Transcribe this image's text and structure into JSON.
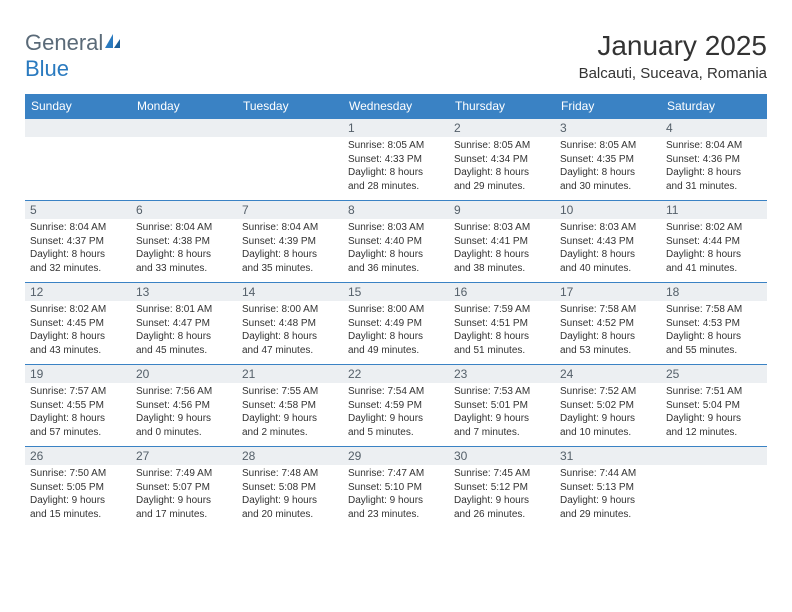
{
  "logo": {
    "general": "General",
    "blue": "Blue"
  },
  "title": "January 2025",
  "location": "Balcauti, Suceava, Romania",
  "colors": {
    "header_bg": "#3a82c4",
    "header_text": "#ffffff",
    "daynum_bg": "#eceff2",
    "daynum_text": "#55606a",
    "border": "#3a82c4",
    "logo_gray": "#5a6a78",
    "logo_blue": "#2a7abf"
  },
  "daysOfWeek": [
    "Sunday",
    "Monday",
    "Tuesday",
    "Wednesday",
    "Thursday",
    "Friday",
    "Saturday"
  ],
  "weeks": [
    [
      null,
      null,
      null,
      {
        "n": "1",
        "sr": "8:05 AM",
        "ss": "4:33 PM",
        "dh": "8",
        "dm": "28"
      },
      {
        "n": "2",
        "sr": "8:05 AM",
        "ss": "4:34 PM",
        "dh": "8",
        "dm": "29"
      },
      {
        "n": "3",
        "sr": "8:05 AM",
        "ss": "4:35 PM",
        "dh": "8",
        "dm": "30"
      },
      {
        "n": "4",
        "sr": "8:04 AM",
        "ss": "4:36 PM",
        "dh": "8",
        "dm": "31"
      }
    ],
    [
      {
        "n": "5",
        "sr": "8:04 AM",
        "ss": "4:37 PM",
        "dh": "8",
        "dm": "32"
      },
      {
        "n": "6",
        "sr": "8:04 AM",
        "ss": "4:38 PM",
        "dh": "8",
        "dm": "33"
      },
      {
        "n": "7",
        "sr": "8:04 AM",
        "ss": "4:39 PM",
        "dh": "8",
        "dm": "35"
      },
      {
        "n": "8",
        "sr": "8:03 AM",
        "ss": "4:40 PM",
        "dh": "8",
        "dm": "36"
      },
      {
        "n": "9",
        "sr": "8:03 AM",
        "ss": "4:41 PM",
        "dh": "8",
        "dm": "38"
      },
      {
        "n": "10",
        "sr": "8:03 AM",
        "ss": "4:43 PM",
        "dh": "8",
        "dm": "40"
      },
      {
        "n": "11",
        "sr": "8:02 AM",
        "ss": "4:44 PM",
        "dh": "8",
        "dm": "41"
      }
    ],
    [
      {
        "n": "12",
        "sr": "8:02 AM",
        "ss": "4:45 PM",
        "dh": "8",
        "dm": "43"
      },
      {
        "n": "13",
        "sr": "8:01 AM",
        "ss": "4:47 PM",
        "dh": "8",
        "dm": "45"
      },
      {
        "n": "14",
        "sr": "8:00 AM",
        "ss": "4:48 PM",
        "dh": "8",
        "dm": "47"
      },
      {
        "n": "15",
        "sr": "8:00 AM",
        "ss": "4:49 PM",
        "dh": "8",
        "dm": "49"
      },
      {
        "n": "16",
        "sr": "7:59 AM",
        "ss": "4:51 PM",
        "dh": "8",
        "dm": "51"
      },
      {
        "n": "17",
        "sr": "7:58 AM",
        "ss": "4:52 PM",
        "dh": "8",
        "dm": "53"
      },
      {
        "n": "18",
        "sr": "7:58 AM",
        "ss": "4:53 PM",
        "dh": "8",
        "dm": "55"
      }
    ],
    [
      {
        "n": "19",
        "sr": "7:57 AM",
        "ss": "4:55 PM",
        "dh": "8",
        "dm": "57"
      },
      {
        "n": "20",
        "sr": "7:56 AM",
        "ss": "4:56 PM",
        "dh": "9",
        "dm": "0"
      },
      {
        "n": "21",
        "sr": "7:55 AM",
        "ss": "4:58 PM",
        "dh": "9",
        "dm": "2"
      },
      {
        "n": "22",
        "sr": "7:54 AM",
        "ss": "4:59 PM",
        "dh": "9",
        "dm": "5"
      },
      {
        "n": "23",
        "sr": "7:53 AM",
        "ss": "5:01 PM",
        "dh": "9",
        "dm": "7"
      },
      {
        "n": "24",
        "sr": "7:52 AM",
        "ss": "5:02 PM",
        "dh": "9",
        "dm": "10"
      },
      {
        "n": "25",
        "sr": "7:51 AM",
        "ss": "5:04 PM",
        "dh": "9",
        "dm": "12"
      }
    ],
    [
      {
        "n": "26",
        "sr": "7:50 AM",
        "ss": "5:05 PM",
        "dh": "9",
        "dm": "15"
      },
      {
        "n": "27",
        "sr": "7:49 AM",
        "ss": "5:07 PM",
        "dh": "9",
        "dm": "17"
      },
      {
        "n": "28",
        "sr": "7:48 AM",
        "ss": "5:08 PM",
        "dh": "9",
        "dm": "20"
      },
      {
        "n": "29",
        "sr": "7:47 AM",
        "ss": "5:10 PM",
        "dh": "9",
        "dm": "23"
      },
      {
        "n": "30",
        "sr": "7:45 AM",
        "ss": "5:12 PM",
        "dh": "9",
        "dm": "26"
      },
      {
        "n": "31",
        "sr": "7:44 AM",
        "ss": "5:13 PM",
        "dh": "9",
        "dm": "29"
      },
      null
    ]
  ]
}
